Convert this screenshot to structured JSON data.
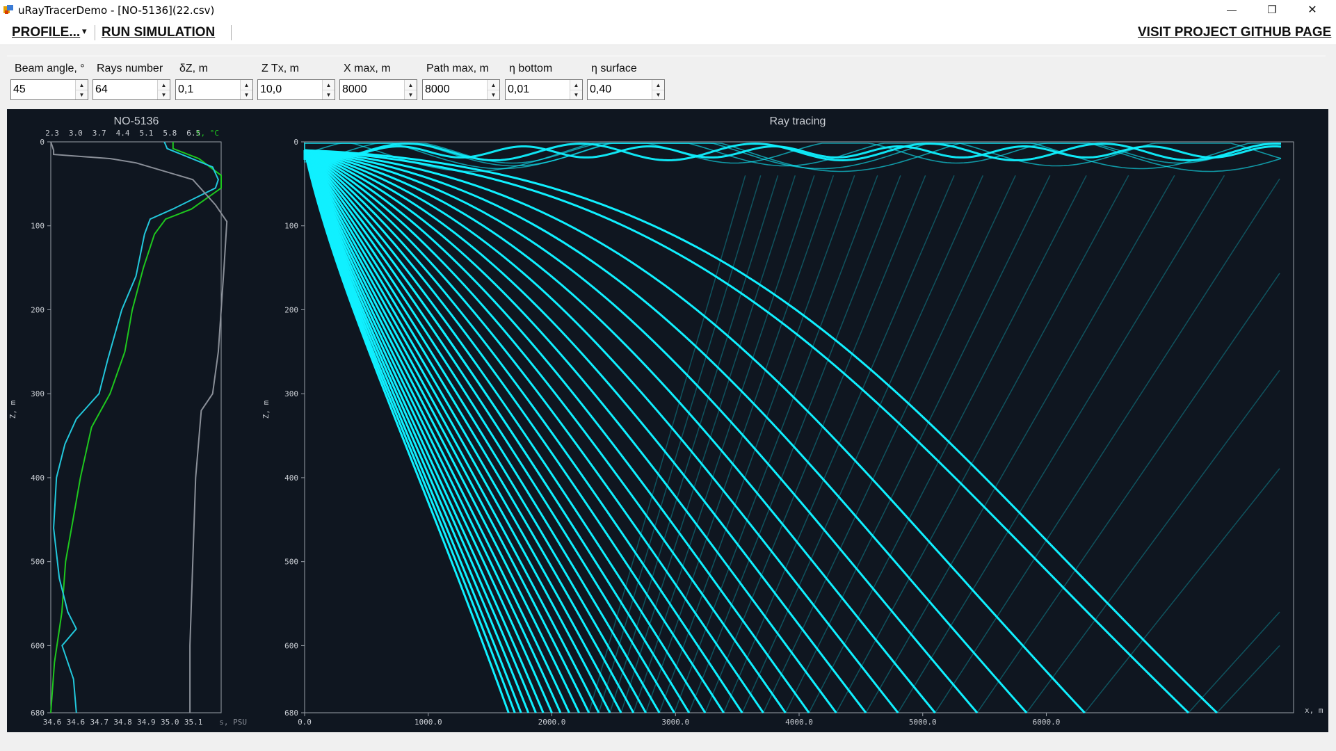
{
  "window": {
    "title": "uRayTracerDemo - [NO-5136](22.csv)",
    "minimize_glyph": "—",
    "maximize_glyph": "❐",
    "close_glyph": "✕"
  },
  "menu": {
    "profile": "PROFILE...",
    "profile_arrow": "▾",
    "run": "RUN SIMULATION",
    "github": "VISIT PROJECT GITHUB PAGE"
  },
  "params": [
    {
      "label": "Beam angle, °",
      "value": "45"
    },
    {
      "label": "Rays number",
      "value": "64"
    },
    {
      "label": "δZ, m",
      "value": "0,1"
    },
    {
      "label": "Z Tx, m",
      "value": "10,0"
    },
    {
      "label": "X max, m",
      "value": "8000"
    },
    {
      "label": "Path max, m",
      "value": "8000"
    },
    {
      "label": "η bottom",
      "value": "0,01"
    },
    {
      "label": "η surface",
      "value": "0,40"
    }
  ],
  "chart_data": [
    {
      "type": "line",
      "title": "NO-5136",
      "ylabel": "Z, m",
      "ylim": [
        680,
        0
      ],
      "y_ticks": [
        "0",
        "100",
        "200",
        "300",
        "400",
        "500",
        "600",
        "680"
      ],
      "top_axis": {
        "label": "t, °C",
        "ticks": [
          "2.3",
          "3.0",
          "3.7",
          "4.4",
          "5.1",
          "5.8",
          "6.5"
        ],
        "range": [
          2.3,
          6.9
        ]
      },
      "bottom_axis": {
        "label": "s, PSU",
        "ticks": [
          "34.6",
          "34.6",
          "34.7",
          "34.8",
          "34.9",
          "35.0",
          "35.1"
        ],
        "range": [
          34.55,
          35.15
        ]
      },
      "colors": {
        "temperature": "#1ec81e",
        "salinity": "#22c8dc",
        "sound_speed": "#8a8f98"
      },
      "series": [
        {
          "name": "t, °C",
          "values": [
            [
              5.6,
              0
            ],
            [
              5.6,
              8
            ],
            [
              6.3,
              20
            ],
            [
              6.9,
              40
            ],
            [
              6.9,
              55
            ],
            [
              6.1,
              80
            ],
            [
              5.4,
              92
            ],
            [
              5.1,
              110
            ],
            [
              4.8,
              150
            ],
            [
              4.5,
              200
            ],
            [
              4.3,
              250
            ],
            [
              3.9,
              300
            ],
            [
              3.4,
              340
            ],
            [
              3.1,
              400
            ],
            [
              2.9,
              450
            ],
            [
              2.7,
              500
            ],
            [
              2.6,
              560
            ],
            [
              2.4,
              620
            ],
            [
              2.3,
              680
            ]
          ]
        },
        {
          "name": "s, PSU",
          "values": [
            [
              34.95,
              0
            ],
            [
              34.96,
              8
            ],
            [
              35.12,
              30
            ],
            [
              35.14,
              45
            ],
            [
              35.13,
              55
            ],
            [
              34.98,
              80
            ],
            [
              34.9,
              92
            ],
            [
              34.88,
              110
            ],
            [
              34.85,
              160
            ],
            [
              34.8,
              200
            ],
            [
              34.75,
              260
            ],
            [
              34.72,
              300
            ],
            [
              34.64,
              330
            ],
            [
              34.6,
              360
            ],
            [
              34.57,
              400
            ],
            [
              34.56,
              460
            ],
            [
              34.58,
              520
            ],
            [
              34.61,
              560
            ],
            [
              34.64,
              580
            ],
            [
              34.59,
              600
            ],
            [
              34.63,
              640
            ],
            [
              34.64,
              680
            ]
          ]
        },
        {
          "values": [
            [
              34.55,
              0
            ],
            [
              34.56,
              10
            ],
            [
              34.56,
              15
            ],
            [
              34.76,
              20
            ],
            [
              34.85,
              25
            ],
            [
              35.05,
              45
            ],
            [
              35.13,
              75
            ],
            [
              35.17,
              95
            ],
            [
              35.16,
              150
            ],
            [
              35.15,
              200
            ],
            [
              35.14,
              250
            ],
            [
              35.12,
              300
            ],
            [
              35.08,
              320
            ],
            [
              35.06,
              400
            ],
            [
              35.05,
              500
            ],
            [
              35.04,
              600
            ],
            [
              35.04,
              680
            ]
          ]
        }
      ]
    },
    {
      "type": "line",
      "title": "Ray tracing",
      "xlabel": "x, m",
      "ylabel": "Z, m",
      "xlim": [
        0,
        8000
      ],
      "ylim": [
        680,
        0
      ],
      "x_ticks": [
        "0.0",
        "1000.0",
        "2000.0",
        "3000.0",
        "4000.0",
        "5000.0",
        "6000.0"
      ],
      "y_ticks": [
        "0",
        "100",
        "200",
        "300",
        "400",
        "500",
        "600",
        "680"
      ],
      "source_depth": 10,
      "ray_color": "#10f0ff",
      "bottom_hits_x": [
        1650,
        1700,
        1750,
        1810,
        1870,
        1930,
        2000,
        2070,
        2140,
        2220,
        2300,
        2380,
        2470,
        2560,
        2660,
        2760,
        2870,
        2990,
        3110,
        3240,
        3390,
        3540,
        3710,
        3890,
        4080,
        4300,
        4540,
        4800,
        5100,
        5440,
        5840,
        6310,
        7150,
        7380
      ],
      "surface_channel_ranges": [
        [
          0,
          8000
        ]
      ]
    }
  ]
}
